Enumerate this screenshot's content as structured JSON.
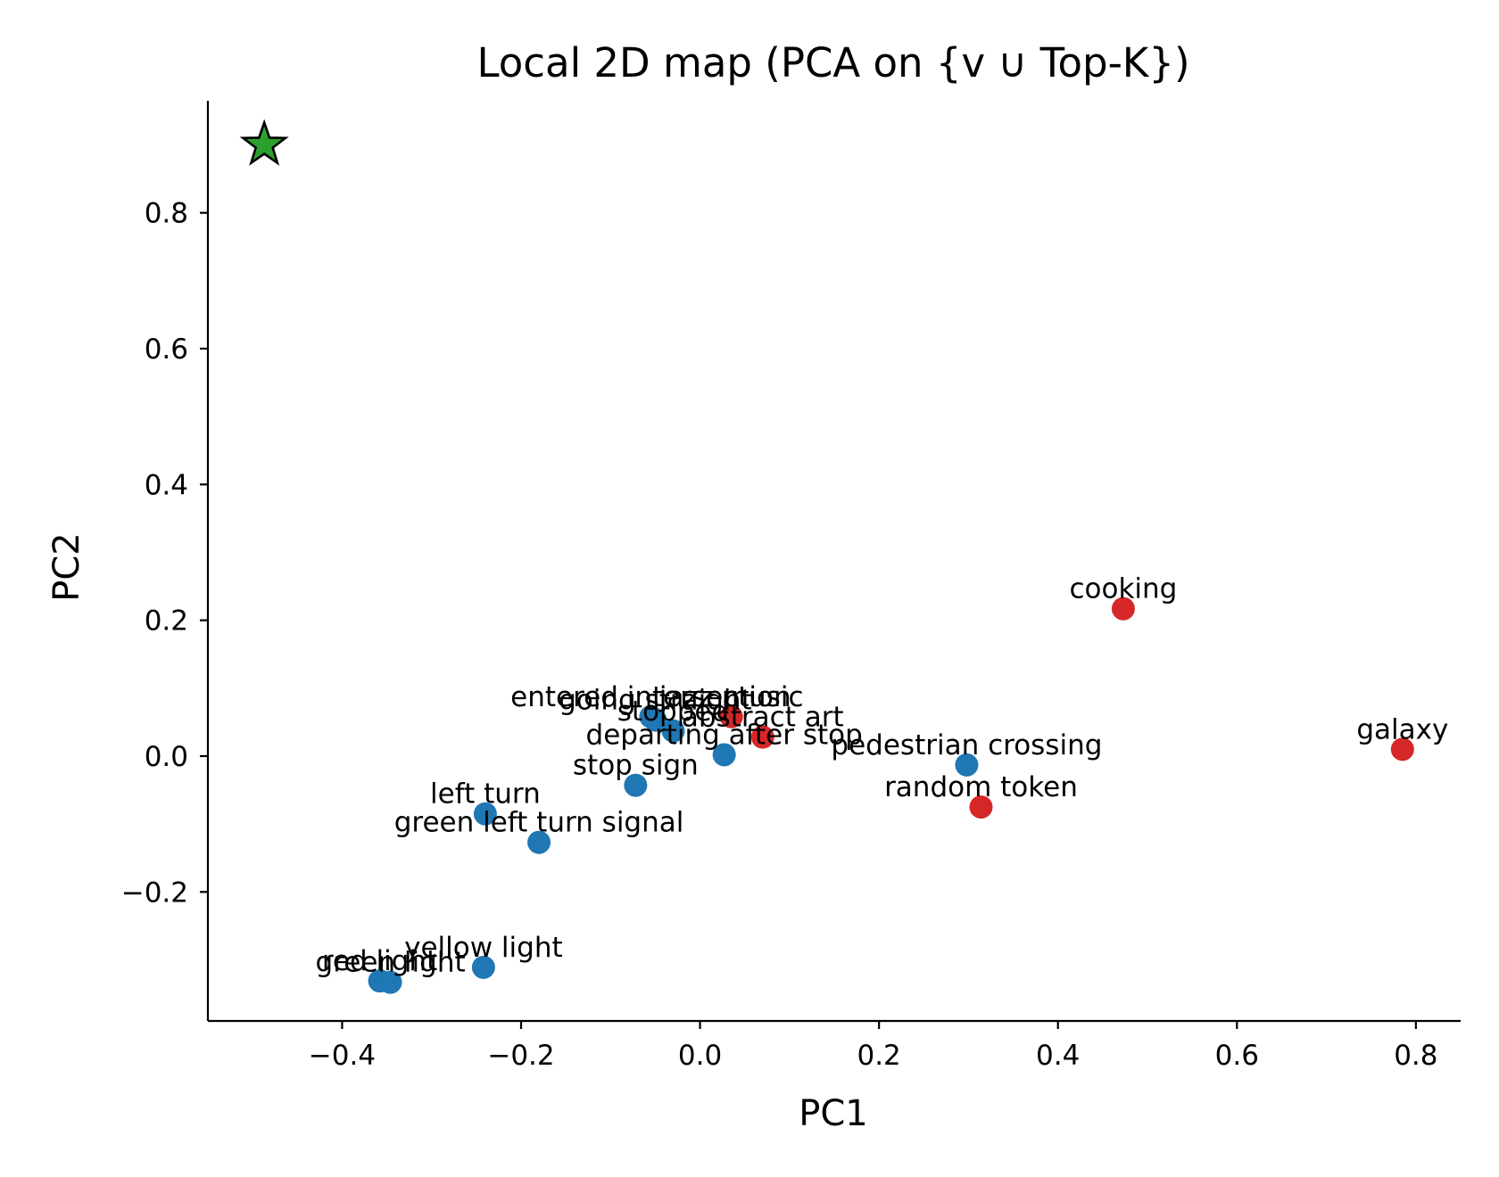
{
  "chart_data": {
    "type": "scatter",
    "title": "Local 2D map (PCA on {v ∪ Top-K})",
    "xlabel": "PC1",
    "ylabel": "PC2",
    "xlim": [
      -0.55,
      0.85
    ],
    "ylim": [
      -0.39,
      0.965
    ],
    "x_ticks": [
      -0.4,
      -0.2,
      0.0,
      0.2,
      0.4,
      0.6,
      0.8
    ],
    "y_ticks": [
      -0.2,
      0.0,
      0.2,
      0.4,
      0.6,
      0.8
    ],
    "x_tick_labels": [
      "−0.4",
      "−0.2",
      "0.0",
      "0.2",
      "0.4",
      "0.6",
      "0.8"
    ],
    "y_tick_labels": [
      "−0.2",
      "0.0",
      "0.2",
      "0.4",
      "0.6",
      "0.8"
    ],
    "grid": false,
    "colors": {
      "related": "#1f77b4",
      "unrelated": "#d62728",
      "query": "#2ca02c"
    },
    "query_point": {
      "x": -0.487,
      "y": 0.9,
      "marker": "star"
    },
    "points": [
      {
        "label": "entered intersection",
        "x": -0.055,
        "y": 0.058,
        "group": "related"
      },
      {
        "label": "going straight",
        "x": -0.05,
        "y": 0.053,
        "group": "related"
      },
      {
        "label": "jazz music",
        "x": 0.035,
        "y": 0.058,
        "group": "unrelated"
      },
      {
        "label": "stopped",
        "x": -0.03,
        "y": 0.037,
        "group": "related"
      },
      {
        "label": "abstract art",
        "x": 0.07,
        "y": 0.028,
        "group": "unrelated"
      },
      {
        "label": "departing after stop",
        "x": 0.027,
        "y": 0.002,
        "group": "related"
      },
      {
        "label": "pedestrian crossing",
        "x": 0.298,
        "y": -0.013,
        "group": "related"
      },
      {
        "label": "stop sign",
        "x": -0.072,
        "y": -0.043,
        "group": "related"
      },
      {
        "label": "random token",
        "x": 0.314,
        "y": -0.075,
        "group": "unrelated"
      },
      {
        "label": "left turn",
        "x": -0.24,
        "y": -0.085,
        "group": "related"
      },
      {
        "label": "green left turn signal",
        "x": -0.18,
        "y": -0.127,
        "group": "related"
      },
      {
        "label": "yellow light",
        "x": -0.242,
        "y": -0.311,
        "group": "related"
      },
      {
        "label": "red light",
        "x": -0.358,
        "y": -0.331,
        "group": "related"
      },
      {
        "label": "green light",
        "x": -0.346,
        "y": -0.333,
        "group": "related"
      },
      {
        "label": "cooking",
        "x": 0.473,
        "y": 0.217,
        "group": "unrelated"
      },
      {
        "label": "galaxy",
        "x": 0.785,
        "y": 0.01,
        "group": "unrelated"
      }
    ]
  }
}
